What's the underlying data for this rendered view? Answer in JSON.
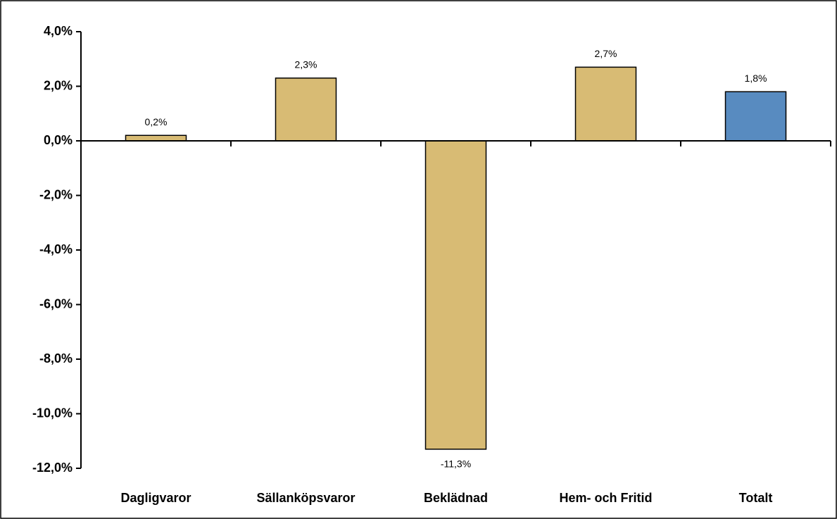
{
  "chart_data": {
    "type": "bar",
    "categories": [
      "Dagligvaror",
      "Sällanköpsvaror",
      "Beklädnad",
      "Hem- och Fritid",
      "Totalt"
    ],
    "values": [
      0.2,
      2.3,
      -11.3,
      2.7,
      1.8
    ],
    "value_labels": [
      "0,2%",
      "2,3%",
      "-11,3%",
      "2,7%",
      "1,8%"
    ],
    "colors": [
      "#d8bb74",
      "#d8bb74",
      "#d8bb74",
      "#d8bb74",
      "#588bc0"
    ],
    "ylim": [
      -12,
      4
    ],
    "yticks": [
      {
        "value": 4,
        "label": "4,0%"
      },
      {
        "value": 2,
        "label": "2,0%"
      },
      {
        "value": 0,
        "label": "0,0%"
      },
      {
        "value": -2,
        "label": "-2,0%"
      },
      {
        "value": -4,
        "label": "-4,0%"
      },
      {
        "value": -6,
        "label": "-6,0%"
      },
      {
        "value": -8,
        "label": "-8,0%"
      },
      {
        "value": -10,
        "label": "-10,0%"
      },
      {
        "value": -12,
        "label": "-12,0%"
      }
    ],
    "grid": false
  }
}
